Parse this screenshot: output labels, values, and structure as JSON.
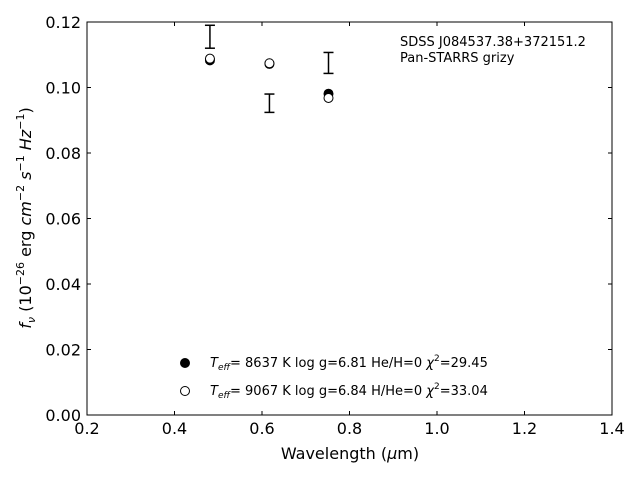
{
  "chart_data": {
    "type": "scatter",
    "title": "",
    "xlabel": "Wavelength (μm)",
    "xlabel_parts": {
      "prefix": "Wavelength (",
      "mu": "μ",
      "suffix": "m)"
    },
    "ylabel": "fν (10⁻²⁶ erg cm⁻² s⁻¹ Hz⁻¹)",
    "ylabel_parts": {
      "f": "f",
      "nu": "ν",
      "open": " (10",
      "exp26": "−26",
      "erg": " erg ",
      "cm": "cm",
      "exp2": "−2",
      "s": " s",
      "exp1": "−1",
      "hz": " Hz",
      "exp1b": "−1",
      "close": ")"
    },
    "xlim": [
      0.2,
      1.4
    ],
    "ylim": [
      0.0,
      0.12
    ],
    "xticks": [
      0.2,
      0.4,
      0.6,
      0.8,
      1.0,
      1.2,
      1.4
    ],
    "xtick_labels": [
      "0.2",
      "0.4",
      "0.6",
      "0.8",
      "1.0",
      "1.2",
      "1.4"
    ],
    "yticks": [
      0.0,
      0.02,
      0.04,
      0.06,
      0.08,
      0.1,
      0.12
    ],
    "ytick_labels": [
      "0.00",
      "0.02",
      "0.04",
      "0.06",
      "0.08",
      "0.10",
      "0.12"
    ],
    "grid": false,
    "annotation": [
      "SDSS J084537.38+372151.2",
      "Pan-STARRS grizy"
    ],
    "observed": [
      {
        "x": 0.481,
        "y": 0.1155,
        "err": 0.0035
      },
      {
        "x": 0.617,
        "y": 0.0952,
        "err": 0.0028
      },
      {
        "x": 0.752,
        "y": 0.1075,
        "err": 0.0032
      }
    ],
    "series": [
      {
        "marker": "filled-circle",
        "x": [
          0.481,
          0.617,
          0.752
        ],
        "y": [
          0.1083,
          0.1072,
          0.0981
        ],
        "legend": {
          "teff_val": "=  8637 K  log g=6.81  He/H=0  ",
          "chi_val": "=29.45"
        }
      },
      {
        "marker": "open-circle",
        "x": [
          0.481,
          0.617,
          0.752
        ],
        "y": [
          0.1088,
          0.1074,
          0.0968
        ],
        "legend": {
          "teff_val": "=  9067 K  log g=6.84  H/He=0  ",
          "chi_val": "=33.04"
        }
      }
    ],
    "legend_symbols": {
      "T": "T",
      "eff": "eff",
      "chi": "χ",
      "two": "2"
    },
    "legend_placement": "lower-center"
  }
}
